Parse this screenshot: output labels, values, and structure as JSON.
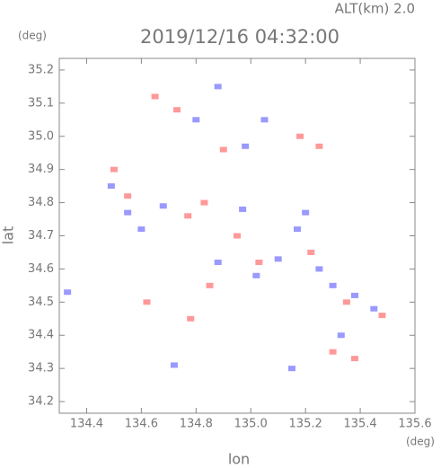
{
  "chart_data": {
    "type": "scatter",
    "altitude_label": "ALT(km) 2.0",
    "title": "2019/12/16 04:32:00",
    "y_unit": "(deg)",
    "x_unit": "(deg)",
    "ylabel": "lat",
    "xlabel": "lon",
    "xlim": [
      134.3,
      135.6
    ],
    "ylim": [
      34.165,
      35.235
    ],
    "xticks": [
      134.4,
      134.6,
      134.8,
      {
        "value": 135,
        "label": "135.0"
      },
      135.2,
      135.4,
      135.6
    ],
    "yticks": [
      34.2,
      34.3,
      34.4,
      34.5,
      34.6,
      34.7,
      34.8,
      34.9,
      {
        "value": 35,
        "label": "35.0"
      },
      35.1,
      35.2
    ],
    "series": [
      {
        "color": "#7f7fff",
        "x": [
          134.33,
          134.49,
          134.55,
          134.8,
          134.88,
          135.17,
          135.25,
          135.3,
          135.38,
          135.45,
          135.1,
          134.97,
          134.68,
          134.6,
          134.88,
          135.02,
          135.15,
          135.33,
          134.72,
          135.05,
          134.98,
          135.2
        ],
        "y": [
          34.53,
          34.85,
          34.77,
          35.05,
          35.15,
          34.72,
          34.6,
          34.55,
          34.52,
          34.48,
          34.63,
          34.78,
          34.79,
          34.72,
          34.62,
          34.58,
          34.3,
          34.4,
          34.31,
          35.05,
          34.97,
          34.77
        ]
      },
      {
        "color": "#ff7f7f",
        "x": [
          134.5,
          134.65,
          134.73,
          135.18,
          135.22,
          135.35,
          135.48,
          135.3,
          135.38,
          134.55,
          134.77,
          134.85,
          134.95,
          134.62,
          134.78,
          135.03,
          134.9,
          135.25,
          134.83
        ],
        "y": [
          34.9,
          35.12,
          35.08,
          35.0,
          34.65,
          34.5,
          34.46,
          34.35,
          34.33,
          34.82,
          34.76,
          34.55,
          34.7,
          34.5,
          34.45,
          34.62,
          34.96,
          34.97,
          34.8
        ]
      }
    ]
  }
}
